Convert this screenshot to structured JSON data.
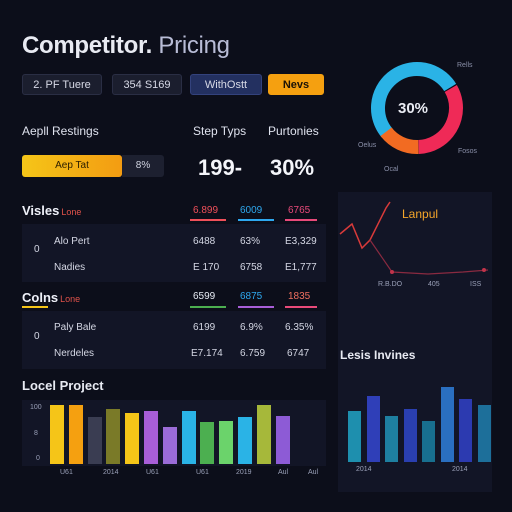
{
  "header": {
    "title_main": "Competitor.",
    "title_sub": " Pricing"
  },
  "tabs": [
    {
      "label": "2. PF Tuere"
    },
    {
      "label": "354 S169"
    },
    {
      "label": "WithOstt"
    },
    {
      "label": "Nevs"
    }
  ],
  "donut": {
    "center_label": "30%",
    "labels": [
      "Rells",
      "Oelus",
      "Fosos",
      "Ocal"
    ],
    "colors": [
      "#2ab3e6",
      "#ef2a57",
      "#f26b22"
    ]
  },
  "summary": {
    "label_left": "Aepll Restings",
    "label_mid": "Step Typs",
    "label_right": "Purtonies",
    "big_mid": "199-",
    "big_right": "30%",
    "slider_label": "Aep Tat",
    "slider_value": "8%"
  },
  "table1": {
    "title": "Visles",
    "subtitle": "Lone",
    "headers": [
      {
        "text": "6.899",
        "color": "#f0505a"
      },
      {
        "text": "6009",
        "color": "#2ea8ef"
      },
      {
        "text": "6765",
        "color": "#e84a7a"
      }
    ],
    "marker": "0",
    "rows": [
      {
        "name": "Alo Pert",
        "c1": "6488",
        "c2": "63%",
        "c3": "E3,329"
      },
      {
        "name": "Nadies",
        "c1": "E 170",
        "c2": "6758",
        "c3": "E1,777"
      }
    ]
  },
  "table2": {
    "title": "Colns",
    "subtitle": "Lone",
    "headers": [
      {
        "text": "6599",
        "color": "#e8edf5"
      },
      {
        "text": "6875",
        "color": "#2ea8ef"
      },
      {
        "text": "1835",
        "color": "#f07060"
      }
    ],
    "marker": "0",
    "rows": [
      {
        "name": "Paly Bale",
        "c1": "6199",
        "c2": "6.9%",
        "c3": "6.35%"
      },
      {
        "name": "Nerdeles",
        "c1": "E7.174",
        "c2": "6.759",
        "c3": "6747"
      }
    ]
  },
  "line_chart": {
    "label": "Lanpul",
    "x_labels": [
      "R.B.DO",
      "405",
      "ISS"
    ]
  },
  "chart_data": [
    {
      "type": "bar",
      "title": "Locel Project",
      "yticks": [
        "100",
        "8",
        "0"
      ],
      "x_labels": [
        "U61",
        "2014",
        "U61",
        "U61",
        "2019",
        "Aul",
        "Aul"
      ],
      "values": [
        95,
        95,
        75,
        88,
        83,
        85,
        60,
        85,
        68,
        70,
        75,
        95,
        77
      ],
      "colors": [
        "#f5c518",
        "#f5a010",
        "#3a3d52",
        "#7a7a28",
        "#f5c518",
        "#a85ed8",
        "#9b6cd8",
        "#2ab3e6",
        "#4caf50",
        "#6bd36b",
        "#2ab3e6",
        "#a6b83a",
        "#8d5bd6"
      ]
    },
    {
      "type": "bar",
      "title": "Lesis Invines",
      "x_labels": [
        "2014",
        "2014"
      ],
      "values": [
        55,
        72,
        50,
        58,
        45,
        82,
        68,
        62
      ],
      "colors": [
        "#1e8fae",
        "#2f3fb8",
        "#1e7fa0",
        "#2a3fb0",
        "#186f8f",
        "#2a6fc0",
        "#2c3ab0",
        "#1d6f9a"
      ]
    }
  ]
}
